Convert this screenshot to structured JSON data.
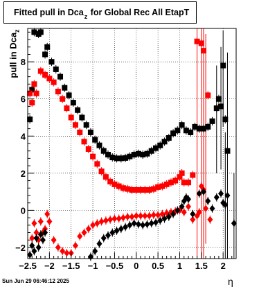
{
  "title": {
    "pre": "Fitted pull in Dca",
    "sub": "z",
    "post": " for Global Rec All EtapT"
  },
  "ylabel": {
    "pre": "pull in Dca",
    "sub": "z"
  },
  "xlabel": "η",
  "timestamp": "Sun Jun 29 06:46:12 2025",
  "chart_data": {
    "type": "scatter",
    "xlim": [
      -2.5,
      2.3
    ],
    "ylim": [
      -2.6,
      9.8
    ],
    "grid": true,
    "x_ticks": [
      -2.5,
      -2,
      -1.5,
      -1,
      -0.5,
      0,
      0.5,
      1,
      1.5,
      2
    ],
    "x_tick_labels": [
      "−2.5",
      "−2",
      "−1.5",
      "−1",
      "−0.5",
      "0",
      "0.5",
      "1",
      "1.5",
      "2"
    ],
    "y_ticks": [
      -2,
      0,
      2,
      4,
      6,
      8
    ],
    "y_tick_labels": [
      "−2",
      "0",
      "2",
      "4",
      "6",
      "8"
    ],
    "series": [
      {
        "color": "#000000",
        "marker": "square",
        "points": [
          [
            -2.45,
            4.9
          ],
          [
            -2.4,
            6.5
          ],
          [
            -2.35,
            9.6
          ],
          [
            -2.25,
            9.5
          ],
          [
            -2.2,
            9.6
          ],
          [
            -2.1,
            8.4
          ],
          [
            -2.05,
            8.8
          ],
          [
            -1.95,
            8.0
          ],
          [
            -1.85,
            7.6
          ],
          [
            -1.75,
            7.2
          ],
          [
            -1.65,
            6.6
          ],
          [
            -1.55,
            6.2
          ],
          [
            -1.45,
            5.8
          ],
          [
            -1.35,
            5.4
          ],
          [
            -1.25,
            5.0
          ],
          [
            -1.15,
            4.6
          ],
          [
            -1.05,
            4.2
          ],
          [
            -0.95,
            3.8
          ],
          [
            -0.85,
            3.5
          ],
          [
            -0.75,
            3.2
          ],
          [
            -0.65,
            3.0
          ],
          [
            -0.55,
            2.85
          ],
          [
            -0.45,
            2.8
          ],
          [
            -0.35,
            2.8
          ],
          [
            -0.25,
            2.82
          ],
          [
            -0.15,
            2.9
          ],
          [
            -0.05,
            3.0
          ],
          [
            0.05,
            3.05
          ],
          [
            0.15,
            3.0
          ],
          [
            0.25,
            3.05
          ],
          [
            0.35,
            3.2
          ],
          [
            0.45,
            3.35
          ],
          [
            0.55,
            3.5
          ],
          [
            0.65,
            3.7
          ],
          [
            0.75,
            3.9
          ],
          [
            0.85,
            4.15
          ],
          [
            0.95,
            4.3
          ],
          [
            1.05,
            4.6
          ],
          [
            1.15,
            4.3
          ],
          [
            1.25,
            4.2
          ],
          [
            1.35,
            4.5
          ],
          [
            1.45,
            4.4
          ],
          [
            1.55,
            4.4
          ],
          [
            1.65,
            4.5
          ],
          [
            1.75,
            4.8
          ],
          [
            1.85,
            5.5
          ],
          [
            1.9,
            6.0
          ],
          [
            1.95,
            5.6
          ],
          [
            2.0,
            7.8
          ],
          [
            2.05,
            4.9
          ],
          [
            2.1,
            3.2
          ]
        ]
      },
      {
        "color": "#ff0000",
        "marker": "square",
        "points": [
          [
            -2.45,
            6.3
          ],
          [
            -2.4,
            5.8
          ],
          [
            -2.35,
            6.8
          ],
          [
            -2.3,
            6.3
          ],
          [
            -2.2,
            7.5
          ],
          [
            -2.1,
            7.3
          ],
          [
            -2.0,
            7.1
          ],
          [
            -1.9,
            6.9
          ],
          [
            -1.8,
            6.4
          ],
          [
            -1.7,
            6.0
          ],
          [
            -1.6,
            5.5
          ],
          [
            -1.5,
            5.0
          ],
          [
            -1.4,
            4.6
          ],
          [
            -1.3,
            4.2
          ],
          [
            -1.2,
            3.7
          ],
          [
            -1.1,
            3.3
          ],
          [
            -1.0,
            2.9
          ],
          [
            -0.9,
            2.5
          ],
          [
            -0.8,
            2.1
          ],
          [
            -0.7,
            1.8
          ],
          [
            -0.6,
            1.55
          ],
          [
            -0.5,
            1.4
          ],
          [
            -0.4,
            1.3
          ],
          [
            -0.3,
            1.2
          ],
          [
            -0.2,
            1.15
          ],
          [
            -0.1,
            1.1
          ],
          [
            0.0,
            1.1
          ],
          [
            0.1,
            1.1
          ],
          [
            0.2,
            1.1
          ],
          [
            0.3,
            1.1
          ],
          [
            0.4,
            1.15
          ],
          [
            0.5,
            1.25
          ],
          [
            0.6,
            1.3
          ],
          [
            0.7,
            1.4
          ],
          [
            0.8,
            1.5
          ],
          [
            0.9,
            1.6
          ],
          [
            1.0,
            1.8
          ],
          [
            1.05,
            2.0
          ],
          [
            1.1,
            1.5
          ],
          [
            1.2,
            1.5
          ],
          [
            1.3,
            1.9
          ],
          [
            1.4,
            9.1
          ],
          [
            1.5,
            9.0
          ],
          [
            1.55,
            8.6
          ],
          [
            1.65,
            6.2
          ]
        ]
      },
      {
        "color": "#ff0000",
        "marker": "diamond",
        "points": [
          [
            -2.4,
            -1.5
          ],
          [
            -2.35,
            -0.7
          ],
          [
            -2.3,
            -1.2
          ],
          [
            -2.25,
            -1.6
          ],
          [
            -2.2,
            -0.6
          ],
          [
            -2.15,
            -1.2
          ],
          [
            -2.1,
            -1.0
          ],
          [
            -2.05,
            -0.2
          ],
          [
            -2.0,
            -0.6
          ],
          [
            -1.9,
            -1.6
          ],
          [
            -1.8,
            -2.0
          ],
          [
            -1.7,
            -2.2
          ],
          [
            -1.6,
            -2.3
          ],
          [
            -1.5,
            -2.3
          ],
          [
            -1.4,
            -1.9
          ],
          [
            -1.3,
            -1.4
          ],
          [
            -1.2,
            -1.2
          ],
          [
            -1.1,
            -1.0
          ],
          [
            -1.0,
            -0.8
          ],
          [
            -0.9,
            -0.7
          ],
          [
            -0.8,
            -0.6
          ],
          [
            -0.7,
            -0.55
          ],
          [
            -0.6,
            -0.5
          ],
          [
            -0.5,
            -0.45
          ],
          [
            -0.4,
            -0.45
          ],
          [
            -0.3,
            -0.4
          ],
          [
            -0.2,
            -0.35
          ],
          [
            -0.1,
            -0.35
          ],
          [
            0.0,
            -0.3
          ],
          [
            0.1,
            -0.3
          ],
          [
            0.2,
            -0.3
          ],
          [
            0.3,
            -0.3
          ],
          [
            0.4,
            -0.25
          ],
          [
            0.5,
            -0.25
          ],
          [
            0.6,
            -0.2
          ],
          [
            0.7,
            -0.15
          ],
          [
            0.8,
            -0.1
          ],
          [
            0.9,
            -0.05
          ],
          [
            1.0,
            0.0
          ],
          [
            1.1,
            -0.1
          ],
          [
            1.2,
            0.2
          ],
          [
            1.3,
            -0.5
          ],
          [
            1.4,
            -0.3
          ],
          [
            1.45,
            -0.1
          ],
          [
            1.5,
            1.3
          ],
          [
            1.55,
            1.1
          ],
          [
            1.6,
            0.1
          ],
          [
            1.7,
            -0.5
          ]
        ]
      },
      {
        "color": "#000000",
        "marker": "diamond",
        "points": [
          [
            -2.45,
            -2.4
          ],
          [
            -2.4,
            -1.9
          ],
          [
            -2.35,
            -2.2
          ],
          [
            -2.3,
            -1.5
          ],
          [
            -2.25,
            -2.0
          ],
          [
            -2.2,
            -1.3
          ],
          [
            -2.15,
            -1.6
          ],
          [
            -2.1,
            -1.2
          ],
          [
            -1.9,
            -3.0
          ],
          [
            -1.05,
            -2.5
          ],
          [
            -0.95,
            -2.2
          ],
          [
            -0.85,
            -1.8
          ],
          [
            -0.75,
            -1.5
          ],
          [
            -0.65,
            -1.35
          ],
          [
            -0.55,
            -1.2
          ],
          [
            -0.45,
            -1.1
          ],
          [
            -0.35,
            -1.0
          ],
          [
            -0.25,
            -0.9
          ],
          [
            -0.15,
            -0.8
          ],
          [
            -0.05,
            -0.7
          ],
          [
            0.05,
            -0.75
          ],
          [
            0.15,
            -0.8
          ],
          [
            0.25,
            -0.75
          ],
          [
            0.35,
            -0.7
          ],
          [
            0.45,
            -0.65
          ],
          [
            0.55,
            -0.55
          ],
          [
            0.65,
            -0.45
          ],
          [
            0.75,
            -0.35
          ],
          [
            0.85,
            -0.2
          ],
          [
            0.95,
            0.0
          ],
          [
            1.05,
            0.2
          ],
          [
            1.1,
            0.5
          ],
          [
            1.15,
            0.7
          ],
          [
            1.2,
            0.6
          ],
          [
            1.3,
            -0.2
          ],
          [
            1.45,
            0.9
          ],
          [
            1.55,
            1.0
          ],
          [
            1.65,
            0.5
          ],
          [
            1.75,
            0.1
          ],
          [
            1.85,
            0.7
          ],
          [
            1.95,
            0.9
          ],
          [
            2.0,
            0.4
          ],
          [
            2.05,
            0.3
          ],
          [
            2.1,
            0.8
          ],
          [
            2.25,
            -0.7
          ]
        ]
      }
    ],
    "error_bars": [
      {
        "color": "#ff0000",
        "x": 1.4,
        "y1": -2.6,
        "y2": 9.8
      },
      {
        "color": "#ff0000",
        "x": 1.5,
        "y1": -2.6,
        "y2": 9.8
      },
      {
        "color": "#ff0000",
        "x": 1.55,
        "y1": -2.6,
        "y2": 9.8
      },
      {
        "color": "#ff0000",
        "x": 1.6,
        "y1": -1.8,
        "y2": 9.5
      },
      {
        "color": "#000000",
        "x": 1.85,
        "y1": 2.0,
        "y2": 7.8
      },
      {
        "color": "#000000",
        "x": 1.95,
        "y1": 2.2,
        "y2": 8.8
      },
      {
        "color": "#000000",
        "x": 2.0,
        "y1": 4.5,
        "y2": 9.7
      },
      {
        "color": "#000000",
        "x": 2.05,
        "y1": -2.6,
        "y2": 4.2
      },
      {
        "color": "#000000",
        "x": 2.1,
        "y1": -2.6,
        "y2": 8.5
      },
      {
        "color": "#000000",
        "x": 2.25,
        "y1": -2.6,
        "y2": 2.0
      }
    ]
  }
}
